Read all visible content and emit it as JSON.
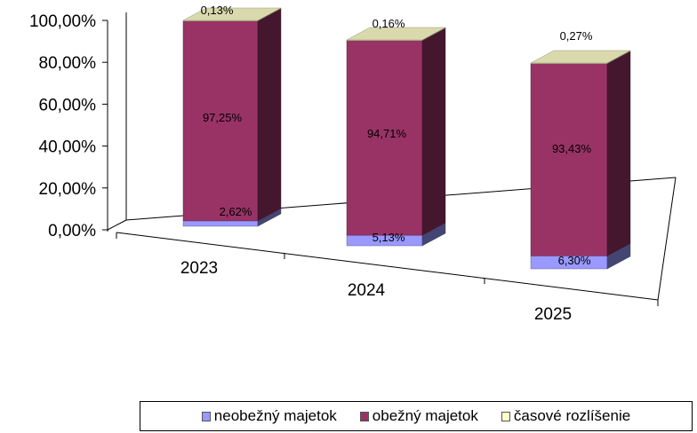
{
  "chart_data": {
    "type": "bar",
    "stacked": true,
    "three_d": true,
    "title": "",
    "xlabel": "",
    "ylabel": "",
    "categories": [
      "2023",
      "2024",
      "2025"
    ],
    "y_ticks": [
      "0,00%",
      "20,00%",
      "40,00%",
      "60,00%",
      "80,00%",
      "100,00%"
    ],
    "ylim": [
      0,
      100
    ],
    "grid": false,
    "legend_position": "bottom",
    "series": [
      {
        "name": "neobežný majetok",
        "values": [
          2.62,
          5.13,
          6.3
        ],
        "labels": [
          "2,62%",
          "5,13%",
          "6,30%"
        ],
        "color": "#9999ff"
      },
      {
        "name": "obežný majetok",
        "values": [
          97.25,
          94.71,
          93.43
        ],
        "labels": [
          "97,25%",
          "94,71%",
          "93,43%"
        ],
        "color": "#993366"
      },
      {
        "name": "časové rozlíšenie",
        "values": [
          0.13,
          0.16,
          0.27
        ],
        "labels": [
          "0,13%",
          "0,16%",
          "0,27%"
        ],
        "color": "#ffffcc"
      }
    ]
  }
}
